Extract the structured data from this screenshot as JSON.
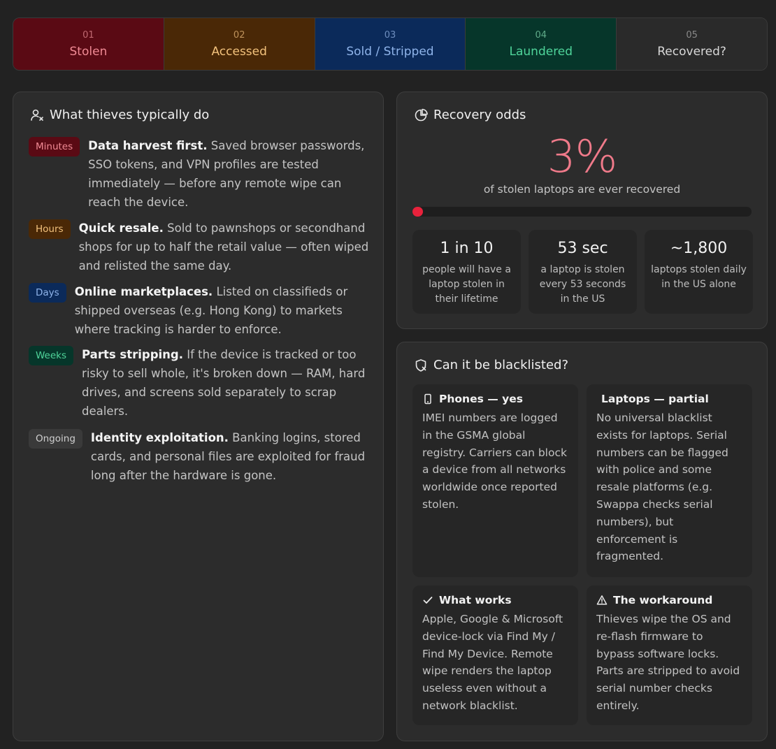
{
  "stages": [
    {
      "num": "01",
      "label": "Stolen",
      "bg": "#5a0a14",
      "num_color": "#d27a82",
      "label_color": "#f08a94"
    },
    {
      "num": "02",
      "label": "Accessed",
      "bg": "#4a2806",
      "num_color": "#d3a56a",
      "label_color": "#f3c27c"
    },
    {
      "num": "03",
      "label": "Sold / Stripped",
      "bg": "#0b2a5a",
      "num_color": "#7f9fd0",
      "label_color": "#8fb4ea"
    },
    {
      "num": "04",
      "label": "Laundered",
      "bg": "#06362a",
      "num_color": "#6fbf9a",
      "label_color": "#4fd49a"
    },
    {
      "num": "05",
      "label": "Recovered?",
      "bg": "#2a2a2a",
      "num_color": "#9a9a9a",
      "label_color": "#d8d8d8"
    }
  ],
  "thieves": {
    "title": "What thieves typically do",
    "icon": "user-x-icon",
    "items": [
      {
        "badge": "Minutes",
        "badge_bg": "#5a0a14",
        "badge_color": "#f08a94",
        "head": "Data harvest first.",
        "body": " Saved browser passwords, SSO tokens, and VPN profiles are tested immediately — before any remote wipe can reach the device."
      },
      {
        "badge": "Hours",
        "badge_bg": "#4a2806",
        "badge_color": "#f3c27c",
        "head": "Quick resale.",
        "body": " Sold to pawnshops or secondhand shops for up to half the retail value — often wiped and relisted the same day."
      },
      {
        "badge": "Days",
        "badge_bg": "#0b2a5a",
        "badge_color": "#8fb4ea",
        "head": "Online marketplaces.",
        "body": " Listed on classifieds or shipped overseas (e.g. Hong Kong) to markets where tracking is harder to enforce."
      },
      {
        "badge": "Weeks",
        "badge_bg": "#06362a",
        "badge_color": "#4fd49a",
        "head": "Parts stripping.",
        "body": " If the device is tracked or too risky to sell whole, it's broken down — RAM, hard drives, and screens sold separately to scrap dealers."
      },
      {
        "badge": "Ongoing",
        "badge_bg": "#3a3a3a",
        "badge_color": "#d0d0d0",
        "head": "Identity exploitation.",
        "body": " Banking logins, stored cards, and personal files are exploited for fraud long after the hardware is gone."
      }
    ]
  },
  "recovery": {
    "title": "Recovery odds",
    "icon": "pie-chart-icon",
    "percent": "3%",
    "percent_value": 0.03,
    "subtitle": "of stolen laptops are ever recovered",
    "stats": [
      {
        "value": "1 in 10",
        "desc": "people will have a laptop stolen in their lifetime"
      },
      {
        "value": "53 sec",
        "desc": "a laptop is stolen every 53 seconds in the US"
      },
      {
        "value": "~1,800",
        "desc": "laptops stolen daily in the US alone"
      }
    ]
  },
  "blacklist": {
    "title": "Can it be blacklisted?",
    "icon": "shield-x-icon",
    "boxes": [
      {
        "icon": "phone-icon",
        "title": "Phones — yes",
        "body": "IMEI numbers are logged in the GSMA global registry. Carriers can block a device from all networks worldwide once reported stolen."
      },
      {
        "icon": "",
        "title": "Laptops — partial",
        "body": "No universal blacklist exists for laptops. Serial numbers can be flagged with police and some resale platforms (e.g. Swappa checks serial numbers), but enforcement is fragmented."
      },
      {
        "icon": "check-icon",
        "title": "What works",
        "body": "Apple, Google & Microsoft device-lock via Find My / Find My Device. Remote wipe renders the laptop useless even without a network blacklist."
      },
      {
        "icon": "warning-icon",
        "title": "The workaround",
        "body": "Thieves wipe the OS and re-flash firmware to bypass software locks. Parts are stripped to avoid serial number checks entirely."
      }
    ]
  }
}
